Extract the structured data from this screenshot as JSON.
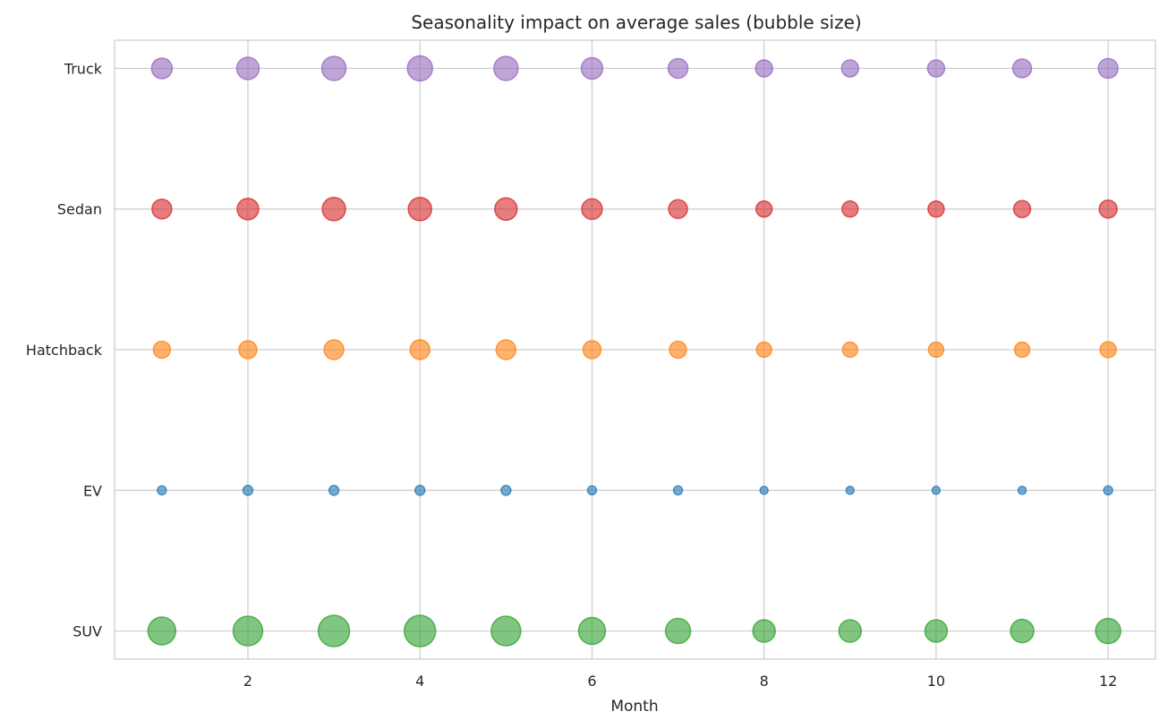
{
  "chart_data": {
    "type": "scatter",
    "title": "Seasonality impact on average sales (bubble size)",
    "xlabel": "Month",
    "ylabel": "",
    "xlim": [
      0.45,
      12.55
    ],
    "x_ticks": [
      2,
      4,
      6,
      8,
      10,
      12
    ],
    "x_tick_labels": [
      "2",
      "4",
      "6",
      "8",
      "10",
      "12"
    ],
    "categories": [
      "SUV",
      "EV",
      "Hatchback",
      "Sedan",
      "Truck"
    ],
    "grid": true,
    "x": [
      1,
      2,
      3,
      4,
      5,
      6,
      7,
      8,
      9,
      10,
      11,
      12
    ],
    "series": [
      {
        "category": "SUV",
        "color": "#2ca02c",
        "sizes": [
          31,
          33,
          35,
          35,
          33,
          30,
          28,
          25,
          25,
          25,
          26,
          28
        ]
      },
      {
        "category": "EV",
        "color": "#1f77b4",
        "sizes": [
          10,
          11,
          11,
          11,
          11,
          10,
          10,
          9,
          9,
          9,
          9,
          10
        ]
      },
      {
        "category": "Hatchback",
        "color": "#ff7f0e",
        "sizes": [
          19,
          20,
          22,
          22,
          22,
          20,
          19,
          17,
          17,
          17,
          17,
          18
        ]
      },
      {
        "category": "Sedan",
        "color": "#d62728",
        "sizes": [
          22,
          24,
          26,
          26,
          25,
          23,
          21,
          18,
          18,
          18,
          19,
          20
        ]
      },
      {
        "category": "Truck",
        "color": "#9467bd",
        "sizes": [
          23,
          25,
          27,
          28,
          27,
          24,
          22,
          19,
          19,
          19,
          21,
          22
        ]
      }
    ]
  }
}
